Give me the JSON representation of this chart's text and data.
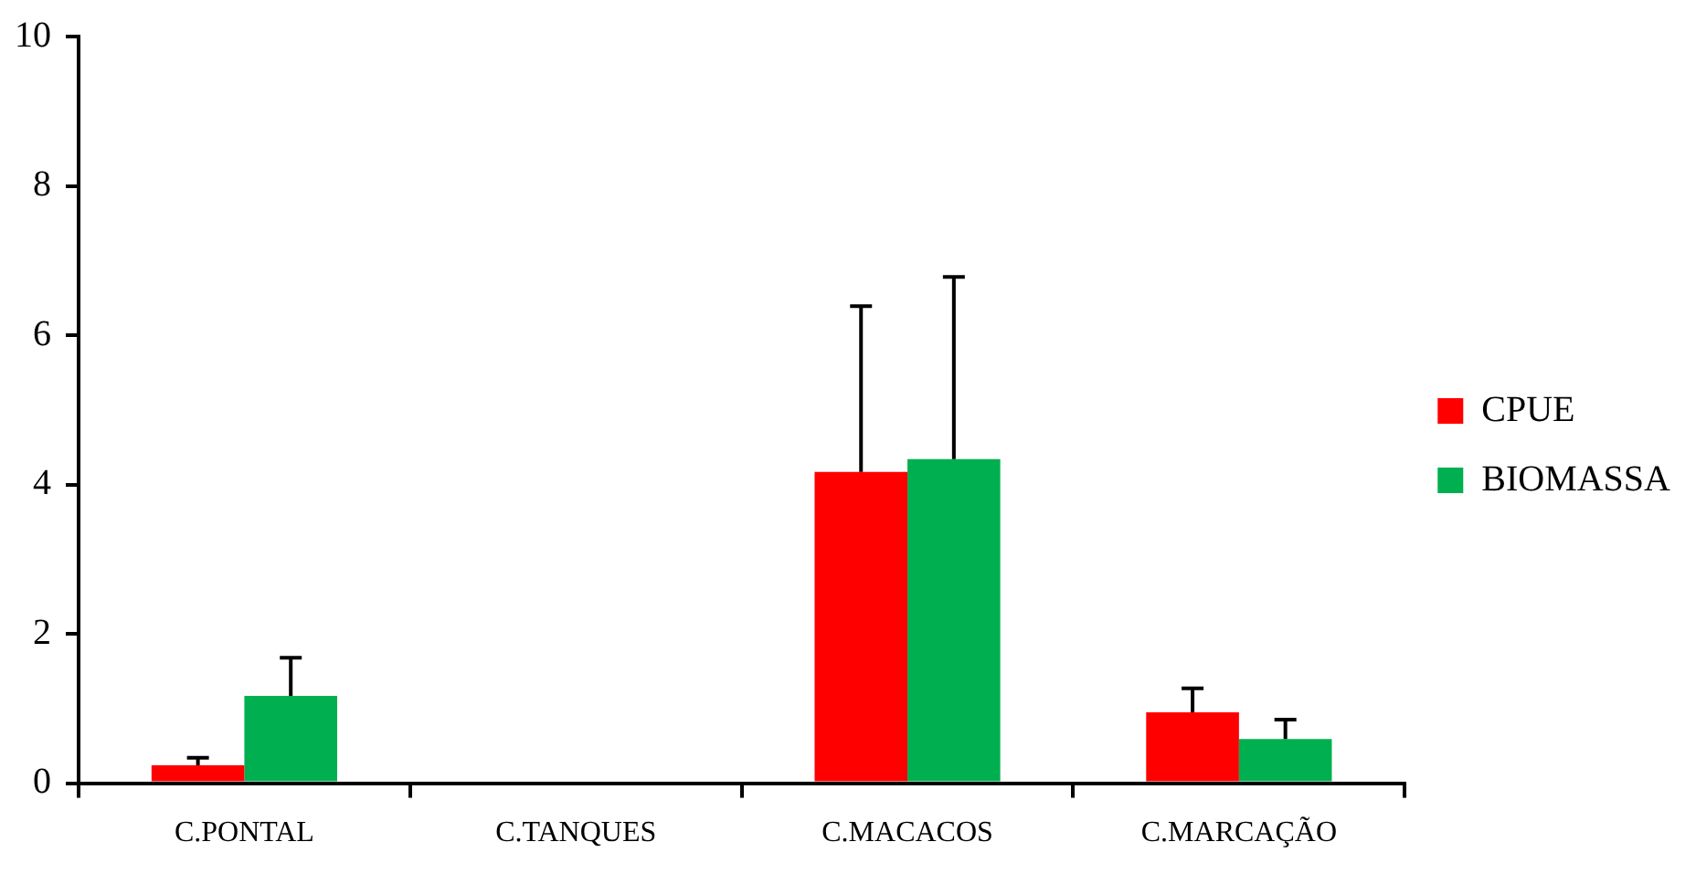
{
  "chart_data": {
    "type": "bar",
    "categories": [
      "C.PONTAL",
      "C.TANQUES",
      "C.MACACOS",
      "C.MARCAÇÃO"
    ],
    "series": [
      {
        "name": "CPUE",
        "color": "#ff0000",
        "values": [
          0.24,
          0,
          4.17,
          0.95
        ],
        "errors": [
          [
            0.24,
            0.34
          ],
          null,
          [
            4.17,
            6.39
          ],
          [
            0.95,
            1.27
          ]
        ]
      },
      {
        "name": "BIOMASSA",
        "color": "#00b050",
        "values": [
          1.17,
          0,
          4.34,
          0.59
        ],
        "errors": [
          [
            1.17,
            1.68
          ],
          null,
          [
            4.34,
            6.78
          ],
          [
            0.59,
            0.85
          ]
        ]
      }
    ],
    "ylim": [
      0,
      10
    ],
    "yticks": [
      0,
      2,
      4,
      6,
      8,
      10
    ],
    "grid": false,
    "legend": "right"
  }
}
